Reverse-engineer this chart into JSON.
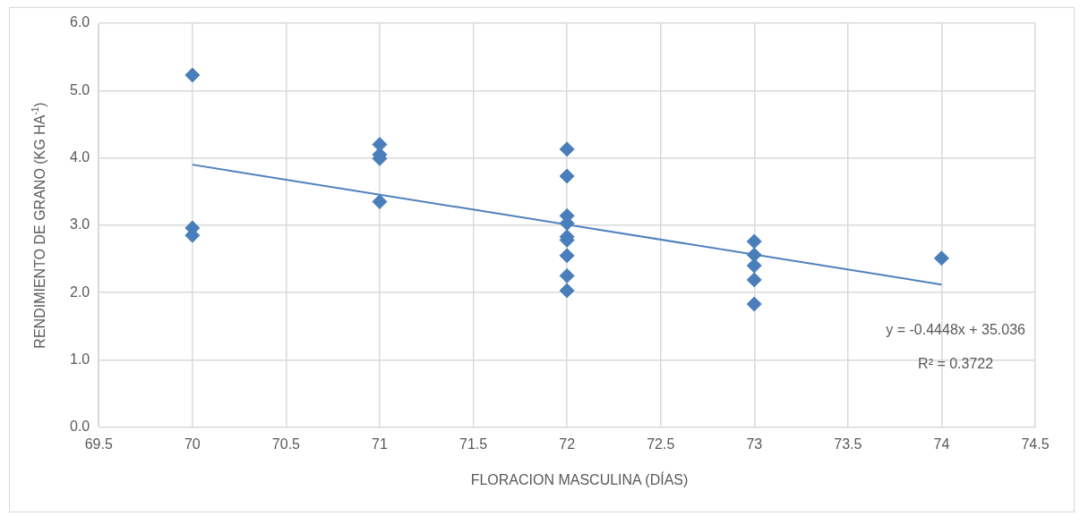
{
  "chart_data": {
    "type": "scatter",
    "xlabel": "FLORACION MASCULINA (DÍAS)",
    "ylabel": "RENDIMIENTO DE GRANO (KG  HA$^{-1}$)",
    "xlim": [
      69.5,
      74.5
    ],
    "xticks": [
      69.5,
      70,
      70.5,
      71,
      71.5,
      72,
      72.5,
      73,
      73.5,
      74,
      74.5
    ],
    "ylim": [
      0,
      6
    ],
    "yticks": [
      {
        "value": 0,
        "label": "0.0"
      },
      {
        "value": 1,
        "label": "1.0"
      },
      {
        "value": 2,
        "label": "2.0"
      },
      {
        "value": 3,
        "label": "3.0"
      },
      {
        "value": 4,
        "label": "4.0"
      },
      {
        "value": 5,
        "label": "5.0"
      },
      {
        "value": 6,
        "label": "6.0"
      }
    ],
    "grid": true,
    "legend": false,
    "marker": "diamond",
    "series": [
      {
        "color": "#4a7ebb",
        "x": [
          70,
          70,
          70,
          71,
          71,
          71,
          71,
          72,
          72,
          72,
          72,
          72,
          72,
          72,
          72,
          72,
          73,
          73,
          73,
          73,
          73,
          74
        ],
        "values": [
          5.23,
          2.96,
          2.85,
          4.2,
          4.05,
          3.99,
          3.35,
          4.13,
          3.73,
          3.14,
          3.03,
          2.83,
          2.78,
          2.55,
          2.25,
          2.03,
          2.76,
          2.56,
          2.4,
          2.19,
          1.83,
          2.51
        ]
      },
      {
        "type": "line",
        "color": "#4f81bd",
        "x": [
          70,
          74
        ],
        "values": [
          3.9,
          2.12
        ],
        "marker": "none",
        "line_style": "solid"
      }
    ],
    "annotations": [
      "y = -0.4448x + 35.036",
      "R² = 0.3722"
    ]
  }
}
